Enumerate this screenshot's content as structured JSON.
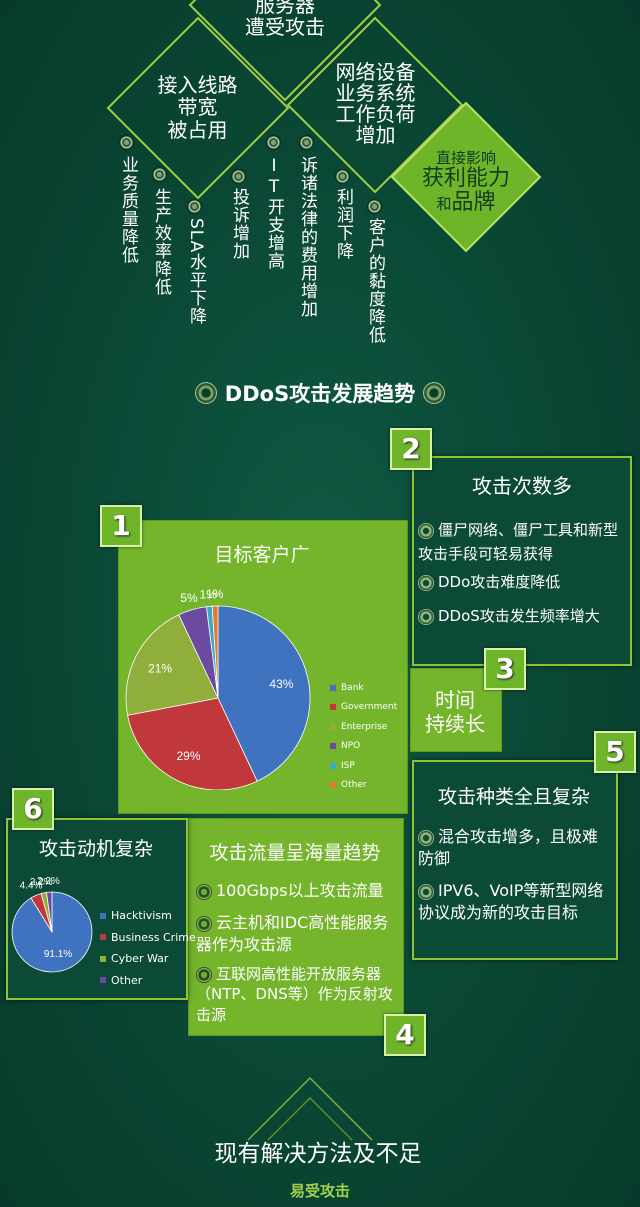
{
  "top_diamonds": {
    "d_top": [
      "服务器",
      "遭受攻击"
    ],
    "d_left": [
      "接入线路",
      "带宽",
      "被占用"
    ],
    "d_right": [
      "网络设备",
      "业务系统",
      "工作负荷",
      "增加"
    ],
    "d_impact": {
      "line1": "直接影响",
      "line2": "获利能力",
      "line3_small": "和",
      "line3_big": "品牌"
    }
  },
  "impacts": [
    "业务质量降低",
    "生产效率降低",
    "SLA水平下降",
    "投诉增加",
    "IT开支增高",
    "诉诸法律的费用增加",
    "利润下降",
    "客户的黏度降低"
  ],
  "trend_title": "DDoS攻击发展趋势",
  "box1": {
    "num": "1",
    "title": "目标客户广"
  },
  "box2": {
    "num": "2",
    "title": "攻击次数多",
    "items": [
      "僵尸网络、僵尸工具和新型攻击手段可轻易获得",
      "DDo攻击难度降低",
      "DDoS攻击发生频率增大"
    ]
  },
  "box3": {
    "num": "3",
    "title_lines": [
      "时间",
      "持续长"
    ]
  },
  "box4": {
    "num": "4",
    "title": "攻击流量呈海量趋势",
    "items": [
      "100Gbps以上攻击流量",
      "云主机和IDC高性能服务器作为攻击源",
      "互联网高性能开放服务器（NTP、DNS等）作为反射攻击源"
    ]
  },
  "box5": {
    "num": "5",
    "title": "攻击种类全且复杂",
    "items": [
      "混合攻击增多，且极难防御",
      "IPV6、VoIP等新型网络协议成为新的攻击目标"
    ]
  },
  "box6": {
    "num": "6",
    "title": "攻击动机复杂"
  },
  "bottom": {
    "title": "现有解决方法及不足",
    "sub": "易受攻击"
  },
  "colors": {
    "accent": "#8fc23a",
    "panel_green": "#74b52c",
    "background": "#0a4735"
  },
  "chart_data": [
    {
      "type": "pie",
      "categories": [
        "Bank",
        "Government",
        "Enterprise",
        "NPO",
        "ISP",
        "Other"
      ],
      "values": [
        43,
        29,
        21,
        5,
        1,
        1
      ],
      "labels": [
        "43%",
        "29%",
        "21%",
        "5%",
        "1%",
        "1%"
      ],
      "colors": [
        "#3f72bf",
        "#c0383a",
        "#8fae3c",
        "#6b4aa0",
        "#3aa8c8",
        "#e07a2a"
      ],
      "legend_position": "right"
    },
    {
      "type": "pie",
      "categories": [
        "Hacktivism",
        "Business Crime",
        "Cyber War",
        "Other"
      ],
      "values": [
        91.1,
        4.4,
        2.2,
        2.2
      ],
      "labels": [
        "91.1%",
        "4.4%",
        "2.2%",
        "2.2%"
      ],
      "colors": [
        "#3f72bf",
        "#c0383a",
        "#8fae3c",
        "#6b4aa0"
      ],
      "legend_position": "right"
    }
  ]
}
